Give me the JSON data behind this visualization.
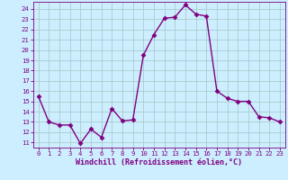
{
  "x": [
    0,
    1,
    2,
    3,
    4,
    5,
    6,
    7,
    8,
    9,
    10,
    11,
    12,
    13,
    14,
    15,
    16,
    17,
    18,
    19,
    20,
    21,
    22,
    23
  ],
  "y": [
    15.5,
    13.0,
    12.7,
    12.7,
    10.9,
    12.3,
    11.5,
    14.3,
    13.1,
    13.2,
    19.5,
    21.5,
    23.1,
    23.2,
    24.4,
    23.5,
    23.3,
    16.0,
    15.3,
    15.0,
    15.0,
    13.5,
    13.4,
    13.0
  ],
  "line_color": "#800080",
  "marker": "D",
  "marker_size": 2.5,
  "bg_color": "#cceeff",
  "grid_color": "#aacccc",
  "xlabel": "Windchill (Refroidissement éolien,°C)",
  "ylim": [
    10.5,
    24.7
  ],
  "xlim": [
    -0.5,
    23.5
  ],
  "yticks": [
    11,
    12,
    13,
    14,
    15,
    16,
    17,
    18,
    19,
    20,
    21,
    22,
    23,
    24
  ],
  "xticks": [
    0,
    1,
    2,
    3,
    4,
    5,
    6,
    7,
    8,
    9,
    10,
    11,
    12,
    13,
    14,
    15,
    16,
    17,
    18,
    19,
    20,
    21,
    22,
    23
  ],
  "tick_color": "#800080",
  "label_color": "#800080",
  "tick_fontsize": 5.2,
  "xlabel_fontsize": 6.0,
  "linewidth": 1.0
}
